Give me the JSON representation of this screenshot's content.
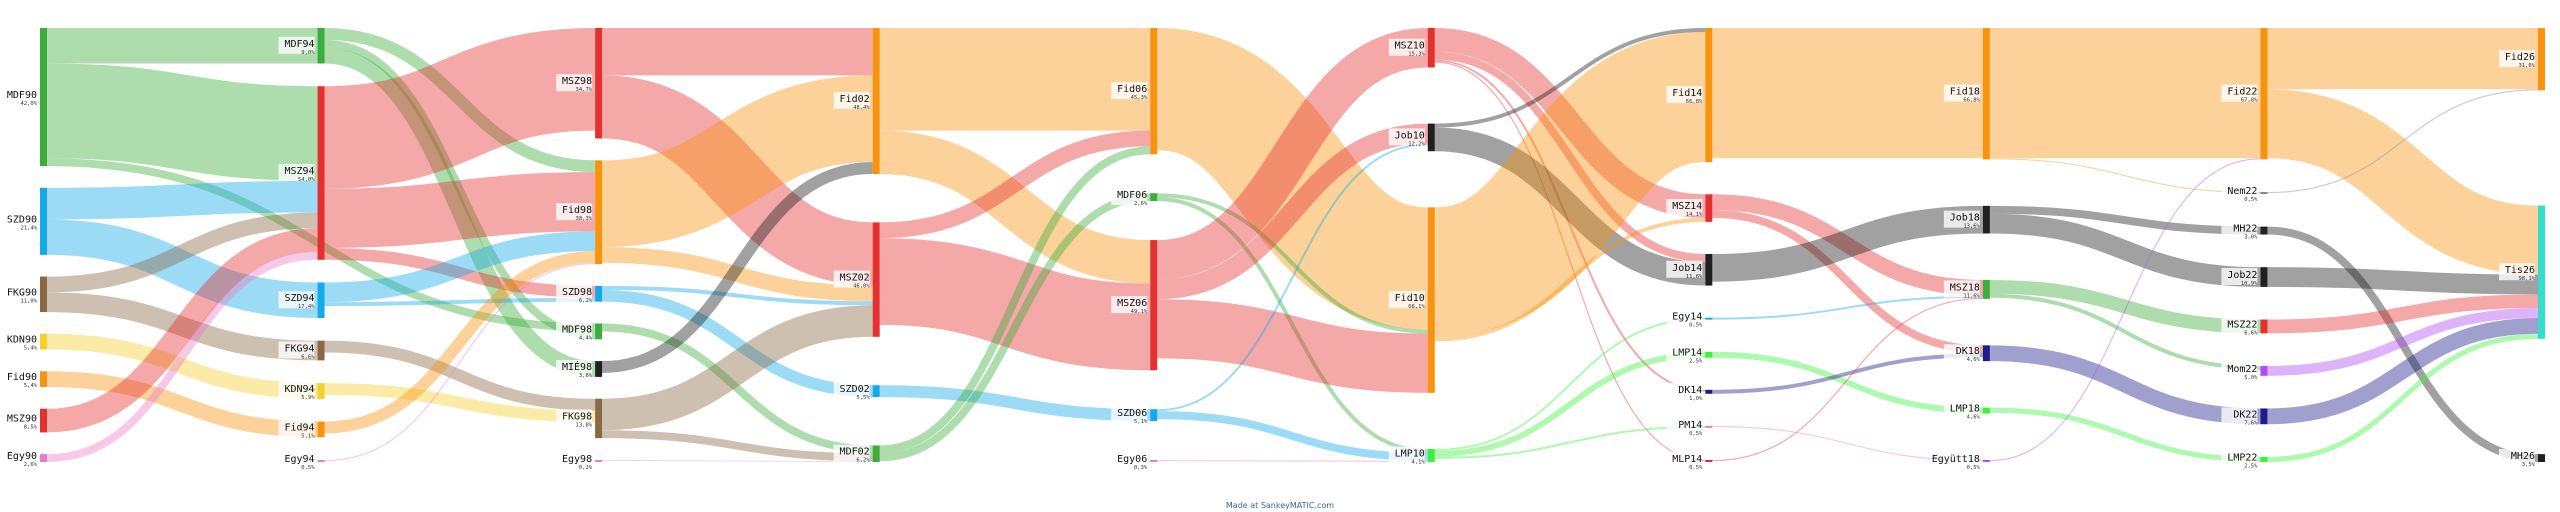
{
  "credit": "Made at SankeyMATIC.com",
  "colors": {
    "MDF": "#3cac3c",
    "SZD": "#14a9e8",
    "FKG": "#8a6a44",
    "KDN": "#f5cf2a",
    "Fid": "#f7930f",
    "MSZ": "#e53030",
    "Egy": "#e67ec6",
    "Job": "#202020",
    "LMP": "#3cf03c",
    "DK": "#1c1c8a",
    "Mom": "#ae4cf5",
    "Tisza": "#34dec8",
    "MH": "#202020",
    "Nem": "#888888"
  },
  "chart_data": {
    "type": "sankey",
    "nodes": [
      {
        "id": "MDF90",
        "label": "MDF90",
        "value": "42,0%",
        "group": "MDF"
      },
      {
        "id": "SZD90",
        "label": "SZD90",
        "value": "21,4%",
        "group": "SZD"
      },
      {
        "id": "FKG90",
        "label": "FKG90",
        "value": "11,0%",
        "group": "FKG"
      },
      {
        "id": "KDN90",
        "label": "KDN90",
        "value": "5,4%",
        "group": "KDN"
      },
      {
        "id": "Fid90",
        "label": "Fid90",
        "value": "5,4%",
        "group": "Fid"
      },
      {
        "id": "MSZ90",
        "label": "MSZ90",
        "value": "8,5%",
        "group": "MSZ"
      },
      {
        "id": "Egy90",
        "label": "Egy90",
        "value": "2,6%",
        "group": "Egy"
      },
      {
        "id": "MDF94",
        "label": "MDF94",
        "value": "9,0%",
        "group": "MDF"
      },
      {
        "id": "MSZ94",
        "label": "MSZ94",
        "value": "54,0%",
        "group": "MSZ"
      },
      {
        "id": "SZD94",
        "label": "SZD94",
        "value": "17,4%",
        "group": "SZD"
      },
      {
        "id": "FKG94",
        "label": "FKG94",
        "value": "6,6%",
        "group": "FKG"
      },
      {
        "id": "KDN94",
        "label": "KDN94",
        "value": "5,9%",
        "group": "KDN"
      },
      {
        "id": "Fid94",
        "label": "Fid94",
        "value": "5,1%",
        "group": "Fid"
      },
      {
        "id": "Egy94",
        "label": "Egy94",
        "value": "0,5%",
        "group": "Egy"
      },
      {
        "id": "MSZ98",
        "label": "MSZ98",
        "value": "34,7%",
        "group": "MSZ"
      },
      {
        "id": "Fid98",
        "label": "Fid98",
        "value": "38,3%",
        "group": "Fid"
      },
      {
        "id": "SZD98",
        "label": "SZD98",
        "value": "6,2%",
        "group": "SZD"
      },
      {
        "id": "MDF98",
        "label": "MDF98",
        "value": "4,4%",
        "group": "MDF"
      },
      {
        "id": "MIE98",
        "label": "MIÉ98",
        "value": "3,6%",
        "group": "Job"
      },
      {
        "id": "FKG98",
        "label": "FKG98",
        "value": "13,8%",
        "group": "FKG"
      },
      {
        "id": "Egy98",
        "label": "Egy98",
        "value": "0,2%",
        "group": "Egy"
      },
      {
        "id": "Fid02",
        "label": "Fid02",
        "value": "48,4%",
        "group": "Fid"
      },
      {
        "id": "MSZ02",
        "label": "MSZ02",
        "value": "46,0%",
        "group": "MSZ"
      },
      {
        "id": "SZD02",
        "label": "SZD02",
        "value": "5,5%",
        "group": "SZD"
      },
      {
        "id": "MDF02",
        "label": "MDF02",
        "value": "6,2%",
        "group": "MDF"
      },
      {
        "id": "Fid06",
        "label": "Fid06",
        "value": "45,3%",
        "group": "Fid"
      },
      {
        "id": "MDF06",
        "label": "MDF06",
        "value": "2,6%",
        "group": "MDF"
      },
      {
        "id": "MSZ06",
        "label": "MSZ06",
        "value": "49,1%",
        "group": "MSZ"
      },
      {
        "id": "SZD06",
        "label": "SZD06",
        "value": "5,1%",
        "group": "SZD"
      },
      {
        "id": "Egy06",
        "label": "Egy06",
        "value": "0,3%",
        "group": "Egy"
      },
      {
        "id": "MSZ10",
        "label": "MSZ10",
        "value": "15,3%",
        "group": "MSZ"
      },
      {
        "id": "Job10",
        "label": "Job10",
        "value": "12,2%",
        "group": "Job"
      },
      {
        "id": "Fid10",
        "label": "Fid10",
        "value": "68,1%",
        "group": "Fid"
      },
      {
        "id": "LMP10",
        "label": "LMP10",
        "value": "4,1%",
        "group": "LMP"
      },
      {
        "id": "Fid14",
        "label": "Fid14",
        "value": "66,8%",
        "group": "Fid"
      },
      {
        "id": "MSZ14",
        "label": "MSZ14",
        "value": "14,1%",
        "group": "MSZ"
      },
      {
        "id": "Job14",
        "label": "Job14",
        "value": "11,6%",
        "group": "Job"
      },
      {
        "id": "Egy14",
        "label": "Egy14",
        "value": "0,5%",
        "group": "SZD"
      },
      {
        "id": "LMP14",
        "label": "LMP14",
        "value": "2,5%",
        "group": "LMP"
      },
      {
        "id": "DK14",
        "label": "DK14",
        "value": "1,0%",
        "group": "DK"
      },
      {
        "id": "PM14",
        "label": "PM14",
        "value": "0,5%",
        "group": "Egy"
      },
      {
        "id": "MLP14",
        "label": "MLP14",
        "value": "0,5%",
        "group": "MSZ"
      },
      {
        "id": "Fid18",
        "label": "Fid18",
        "value": "66,8%",
        "group": "Fid"
      },
      {
        "id": "Job18",
        "label": "Job18",
        "value": "13,6%",
        "group": "Job"
      },
      {
        "id": "MSZ18",
        "label": "MSZ18",
        "value": "11,6%",
        "group": "MDF"
      },
      {
        "id": "DK18",
        "label": "DK18",
        "value": "4,6%",
        "group": "DK"
      },
      {
        "id": "LMP18",
        "label": "LMP18",
        "value": "4,6%",
        "group": "LMP"
      },
      {
        "id": "Egyut18",
        "label": "Együtt18",
        "value": "0,5%",
        "group": "Mom"
      },
      {
        "id": "Fid22",
        "label": "Fid22",
        "value": "67,8%",
        "group": "Fid"
      },
      {
        "id": "Nem22",
        "label": "Nem22",
        "value": "0,5%",
        "group": "Nem"
      },
      {
        "id": "MH22",
        "label": "MH22",
        "value": "3,0%",
        "group": "MH"
      },
      {
        "id": "Job22",
        "label": "Job22",
        "value": "10,9%",
        "group": "Job"
      },
      {
        "id": "MSZ22",
        "label": "MSZ22",
        "value": "6,6%",
        "group": "MSZ"
      },
      {
        "id": "Mom22",
        "label": "Mom22",
        "value": "5,0%",
        "group": "Mom"
      },
      {
        "id": "DK22",
        "label": "DK22",
        "value": "7,6%",
        "group": "DK"
      },
      {
        "id": "LMP22",
        "label": "LMP22",
        "value": "2,5%",
        "group": "LMP"
      },
      {
        "id": "Fid26",
        "label": "Fid26",
        "value": "31,6%",
        "group": "Fid"
      },
      {
        "id": "Tis26",
        "label": "Tis26",
        "value": "98,1%",
        "group": "Tisza"
      },
      {
        "id": "MH26",
        "label": "MH26",
        "value": "3,5%",
        "group": "MH"
      }
    ],
    "columns": [
      [
        "MDF90",
        "SZD90",
        "FKG90",
        "KDN90",
        "Fid90",
        "MSZ90",
        "Egy90"
      ],
      [
        "MDF94",
        "MSZ94",
        "SZD94",
        "FKG94",
        "KDN94",
        "Fid94",
        "Egy94"
      ],
      [
        "MSZ98",
        "Fid98",
        "SZD98",
        "MDF98",
        "MIE98",
        "FKG98",
        "Egy98"
      ],
      [
        "Fid02",
        "MSZ02",
        "SZD02",
        "MDF02"
      ],
      [
        "Fid06",
        "MDF06",
        "MSZ06",
        "SZD06",
        "Egy06"
      ],
      [
        "MSZ10",
        "Job10",
        "Fid10",
        "LMP10"
      ],
      [
        "Fid14",
        "MSZ14",
        "Job14",
        "Egy14",
        "LMP14",
        "DK14",
        "PM14",
        "MLP14"
      ],
      [
        "Fid18",
        "Job18",
        "MSZ18",
        "DK18",
        "LMP18",
        "Egyut18"
      ],
      [
        "Fid22",
        "Nem22",
        "MH22",
        "Job22",
        "MSZ22",
        "Mom22",
        "DK22",
        "LMP22"
      ],
      [
        "Fid26",
        "Tis26",
        "MH26"
      ]
    ],
    "links": [
      {
        "source": "MDF90",
        "target": "MDF94",
        "value": 9
      },
      {
        "source": "MDF90",
        "target": "MSZ94",
        "value": 24
      },
      {
        "source": "MDF90",
        "target": "MDF98",
        "value": 2
      },
      {
        "source": "SZD90",
        "target": "MSZ94",
        "value": 8
      },
      {
        "source": "SZD90",
        "target": "SZD94",
        "value": 9
      },
      {
        "source": "FKG90",
        "target": "MSZ94",
        "value": 4
      },
      {
        "source": "FKG90",
        "target": "FKG94",
        "value": 5
      },
      {
        "source": "KDN90",
        "target": "KDN94",
        "value": 4
      },
      {
        "source": "Fid90",
        "target": "Fid94",
        "value": 4
      },
      {
        "source": "MSZ90",
        "target": "MSZ94",
        "value": 6
      },
      {
        "source": "Egy90",
        "target": "MSZ94",
        "value": 2
      },
      {
        "source": "MDF94",
        "target": "MDF98",
        "value": 2
      },
      {
        "source": "MDF94",
        "target": "MIE98",
        "value": 4
      },
      {
        "source": "MDF94",
        "target": "Fid98",
        "value": 3
      },
      {
        "source": "MSZ94",
        "target": "MSZ98",
        "value": 26
      },
      {
        "source": "MSZ94",
        "target": "Fid98",
        "value": 15
      },
      {
        "source": "MSZ94",
        "target": "SZD98",
        "value": 3
      },
      {
        "source": "SZD94",
        "target": "Fid98",
        "value": 5
      },
      {
        "source": "SZD94",
        "target": "SZD98",
        "value": 1
      },
      {
        "source": "FKG94",
        "target": "FKG98",
        "value": 3
      },
      {
        "source": "KDN94",
        "target": "FKG98",
        "value": 3
      },
      {
        "source": "Fid94",
        "target": "Fid98",
        "value": 3
      },
      {
        "source": "Egy94",
        "target": "Fid98",
        "value": 0.3
      },
      {
        "source": "MSZ98",
        "target": "MSZ02",
        "value": 16
      },
      {
        "source": "MSZ98",
        "target": "Fid02",
        "value": 12
      },
      {
        "source": "Fid98",
        "target": "Fid02",
        "value": 22
      },
      {
        "source": "Fid98",
        "target": "MSZ02",
        "value": 4
      },
      {
        "source": "SZD98",
        "target": "SZD02",
        "value": 3
      },
      {
        "source": "SZD98",
        "target": "MSZ02",
        "value": 1
      },
      {
        "source": "MDF98",
        "target": "MDF02",
        "value": 2
      },
      {
        "source": "MIE98",
        "target": "Fid02",
        "value": 3
      },
      {
        "source": "FKG98",
        "target": "MSZ02",
        "value": 8
      },
      {
        "source": "FKG98",
        "target": "MDF02",
        "value": 2
      },
      {
        "source": "Egy98",
        "target": "MDF02",
        "value": 0.2
      },
      {
        "source": "Fid02",
        "target": "Fid06",
        "value": 26
      },
      {
        "source": "Fid02",
        "target": "MSZ06",
        "value": 11
      },
      {
        "source": "MSZ02",
        "target": "MSZ06",
        "value": 22
      },
      {
        "source": "MSZ02",
        "target": "Fid06",
        "value": 4
      },
      {
        "source": "SZD02",
        "target": "SZD06",
        "value": 3
      },
      {
        "source": "MDF02",
        "target": "MDF06",
        "value": 2
      },
      {
        "source": "MDF02",
        "target": "Fid06",
        "value": 2
      },
      {
        "source": "Fid06",
        "target": "Fid10",
        "value": 31
      },
      {
        "source": "MDF06",
        "target": "Fid10",
        "value": 1
      },
      {
        "source": "MDF06",
        "target": "LMP10",
        "value": 1
      },
      {
        "source": "MSZ06",
        "target": "MSZ10",
        "value": 10
      },
      {
        "source": "MSZ06",
        "target": "Job10",
        "value": 5
      },
      {
        "source": "MSZ06",
        "target": "Fid10",
        "value": 15
      },
      {
        "source": "SZD06",
        "target": "LMP10",
        "value": 2
      },
      {
        "source": "SZD06",
        "target": "Job10",
        "value": 0.5
      },
      {
        "source": "Egy06",
        "target": "LMP10",
        "value": 0.3
      },
      {
        "source": "MSZ10",
        "target": "MSZ14",
        "value": 6
      },
      {
        "source": "MSZ10",
        "target": "Job14",
        "value": 2
      },
      {
        "source": "MSZ10",
        "target": "DK14",
        "value": 0.5
      },
      {
        "source": "MSZ10",
        "target": "MLP14",
        "value": 0.3
      },
      {
        "source": "Job10",
        "target": "Job14",
        "value": 6
      },
      {
        "source": "Job10",
        "target": "Fid14",
        "value": 1
      },
      {
        "source": "Fid10",
        "target": "Fid14",
        "value": 33
      },
      {
        "source": "Fid10",
        "target": "MSZ14",
        "value": 1
      },
      {
        "source": "LMP10",
        "target": "LMP14",
        "value": 1.5
      },
      {
        "source": "LMP10",
        "target": "PM14",
        "value": 0.5
      },
      {
        "source": "LMP10",
        "target": "Egy14",
        "value": 0.5
      },
      {
        "source": "Fid14",
        "target": "Fid18",
        "value": 33
      },
      {
        "source": "MSZ14",
        "target": "MSZ18",
        "value": 4
      },
      {
        "source": "MSZ14",
        "target": "DK18",
        "value": 2
      },
      {
        "source": "Job14",
        "target": "Job18",
        "value": 7
      },
      {
        "source": "Egy14",
        "target": "MSZ18",
        "value": 0.5
      },
      {
        "source": "LMP14",
        "target": "LMP18",
        "value": 1.5
      },
      {
        "source": "DK14",
        "target": "DK18",
        "value": 1
      },
      {
        "source": "PM14",
        "target": "Egyut18",
        "value": 0.3
      },
      {
        "source": "MLP14",
        "target": "MSZ18",
        "value": 0.3
      },
      {
        "source": "Fid18",
        "target": "Fid22",
        "value": 33
      },
      {
        "source": "Fid18",
        "target": "Nem22",
        "value": 0.3
      },
      {
        "source": "Job18",
        "target": "Job22",
        "value": 5
      },
      {
        "source": "Job18",
        "target": "MH22",
        "value": 2
      },
      {
        "source": "MSZ18",
        "target": "MSZ22",
        "value": 3.5
      },
      {
        "source": "MSZ18",
        "target": "Mom22",
        "value": 1
      },
      {
        "source": "DK18",
        "target": "DK22",
        "value": 4
      },
      {
        "source": "LMP18",
        "target": "LMP22",
        "value": 1.3
      },
      {
        "source": "Egyut18",
        "target": "Fid22",
        "value": 0.3
      },
      {
        "source": "Fid22",
        "target": "Fid26",
        "value": 15.5
      },
      {
        "source": "Fid22",
        "target": "Tis26",
        "value": 17.5
      },
      {
        "source": "Nem22",
        "target": "Fid26",
        "value": 0.3
      },
      {
        "source": "MH22",
        "target": "MH26",
        "value": 2
      },
      {
        "source": "Job22",
        "target": "Tis26",
        "value": 5
      },
      {
        "source": "MSZ22",
        "target": "Tis26",
        "value": 3.5
      },
      {
        "source": "Mom22",
        "target": "Tis26",
        "value": 2.5
      },
      {
        "source": "DK22",
        "target": "Tis26",
        "value": 4
      },
      {
        "source": "LMP22",
        "target": "Tis26",
        "value": 1.3
      }
    ]
  }
}
